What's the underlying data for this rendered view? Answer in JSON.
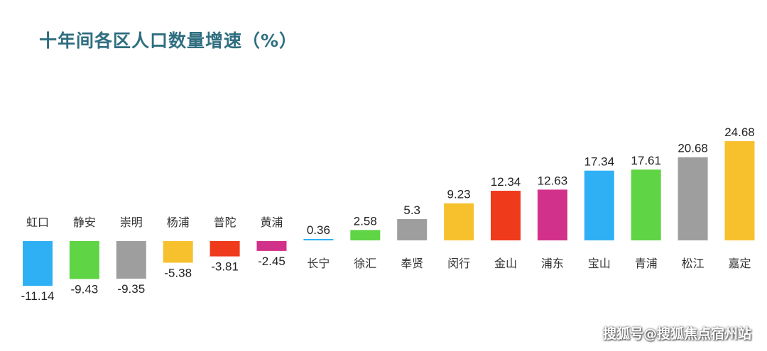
{
  "chart_data": {
    "type": "bar",
    "title": "十年间各区人口数量增速（%）",
    "categories": [
      "虹口",
      "静安",
      "崇明",
      "杨浦",
      "普陀",
      "黄浦",
      "长宁",
      "徐汇",
      "奉贤",
      "闵行",
      "金山",
      "浦东",
      "宝山",
      "青浦",
      "松江",
      "嘉定"
    ],
    "values": [
      -11.14,
      -9.43,
      -9.35,
      -5.38,
      -3.81,
      -2.45,
      0.36,
      2.58,
      5.3,
      9.23,
      12.34,
      12.63,
      17.34,
      17.61,
      20.68,
      24.68
    ],
    "value_labels": [
      "-11.14",
      "-9.43",
      "-9.35",
      "-5.38",
      "-3.81",
      "-2.45",
      "0.36",
      "2.58",
      "5.3",
      "9.23",
      "12.34",
      "12.63",
      "17.34",
      "17.61",
      "20.68",
      "24.68"
    ],
    "colors": [
      "#2fb0f5",
      "#5fd444",
      "#9e9e9e",
      "#f7c12e",
      "#ef3a1c",
      "#d2318b",
      "#2fb0f5",
      "#5fd444",
      "#9e9e9e",
      "#f7c12e",
      "#ef3a1c",
      "#d2318b",
      "#2fb0f5",
      "#5fd444",
      "#9e9e9e",
      "#f7c12e"
    ],
    "xlabel": "",
    "ylabel": "",
    "grid": false,
    "axes_visible": false
  },
  "watermark": "搜狐号@搜狐焦点宿州站"
}
